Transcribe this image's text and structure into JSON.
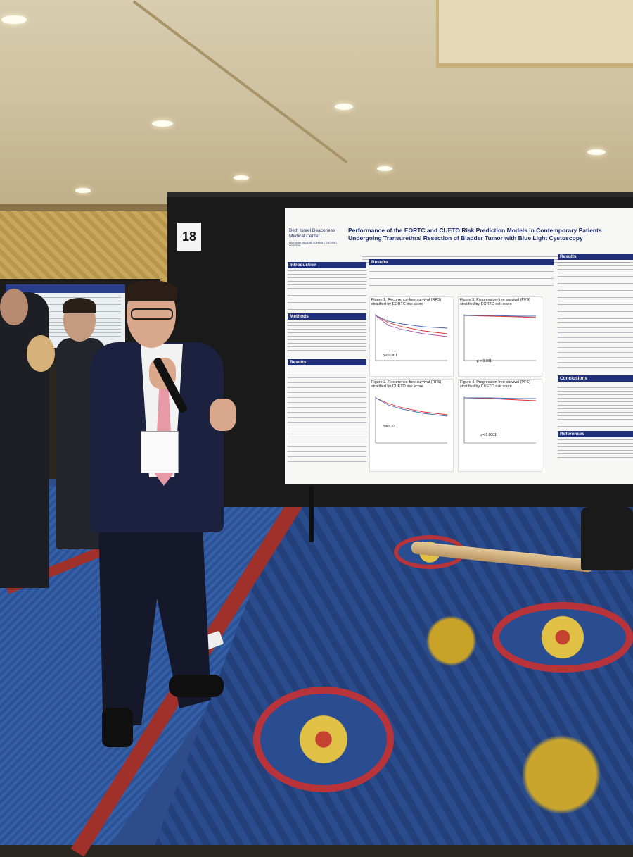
{
  "scene": {
    "board_number": "18"
  },
  "poster": {
    "logo_text": "Beth Israel Deaconess Medical Center",
    "logo_sub": "HARVARD MEDICAL SCHOOL TEACHING HOSPITAL",
    "title": "Performance of the EORTC and CUETO Risk Prediction Models in Contemporary Patients Undergoing Transurethral Resection of Bladder Tumor with Blue Light Cystoscopy",
    "sections": {
      "introduction": "Introduction",
      "methods": "Methods",
      "results_left": "Results",
      "results_mid": "Results",
      "results_right": "Results",
      "conclusions": "Conclusions",
      "references": "References"
    },
    "figures": {
      "fig1": "Figure 1. Recurrence-free survival (RFS) stratified by EORTC risk score",
      "fig2": "Figure 2. Recurrence-free survival (RFS) stratified by CUETO risk score",
      "fig3": "Figure 3. Progression-free survival (PFS) stratified by EORTC risk score",
      "fig4": "Figure 4. Progression-free survival (PFS) stratified by CUETO risk score"
    },
    "pvalues": {
      "fig1": "p < 0.001",
      "fig2": "p = 0.63",
      "fig3": "p < 0.001",
      "fig4": "p < 0.0001"
    }
  }
}
